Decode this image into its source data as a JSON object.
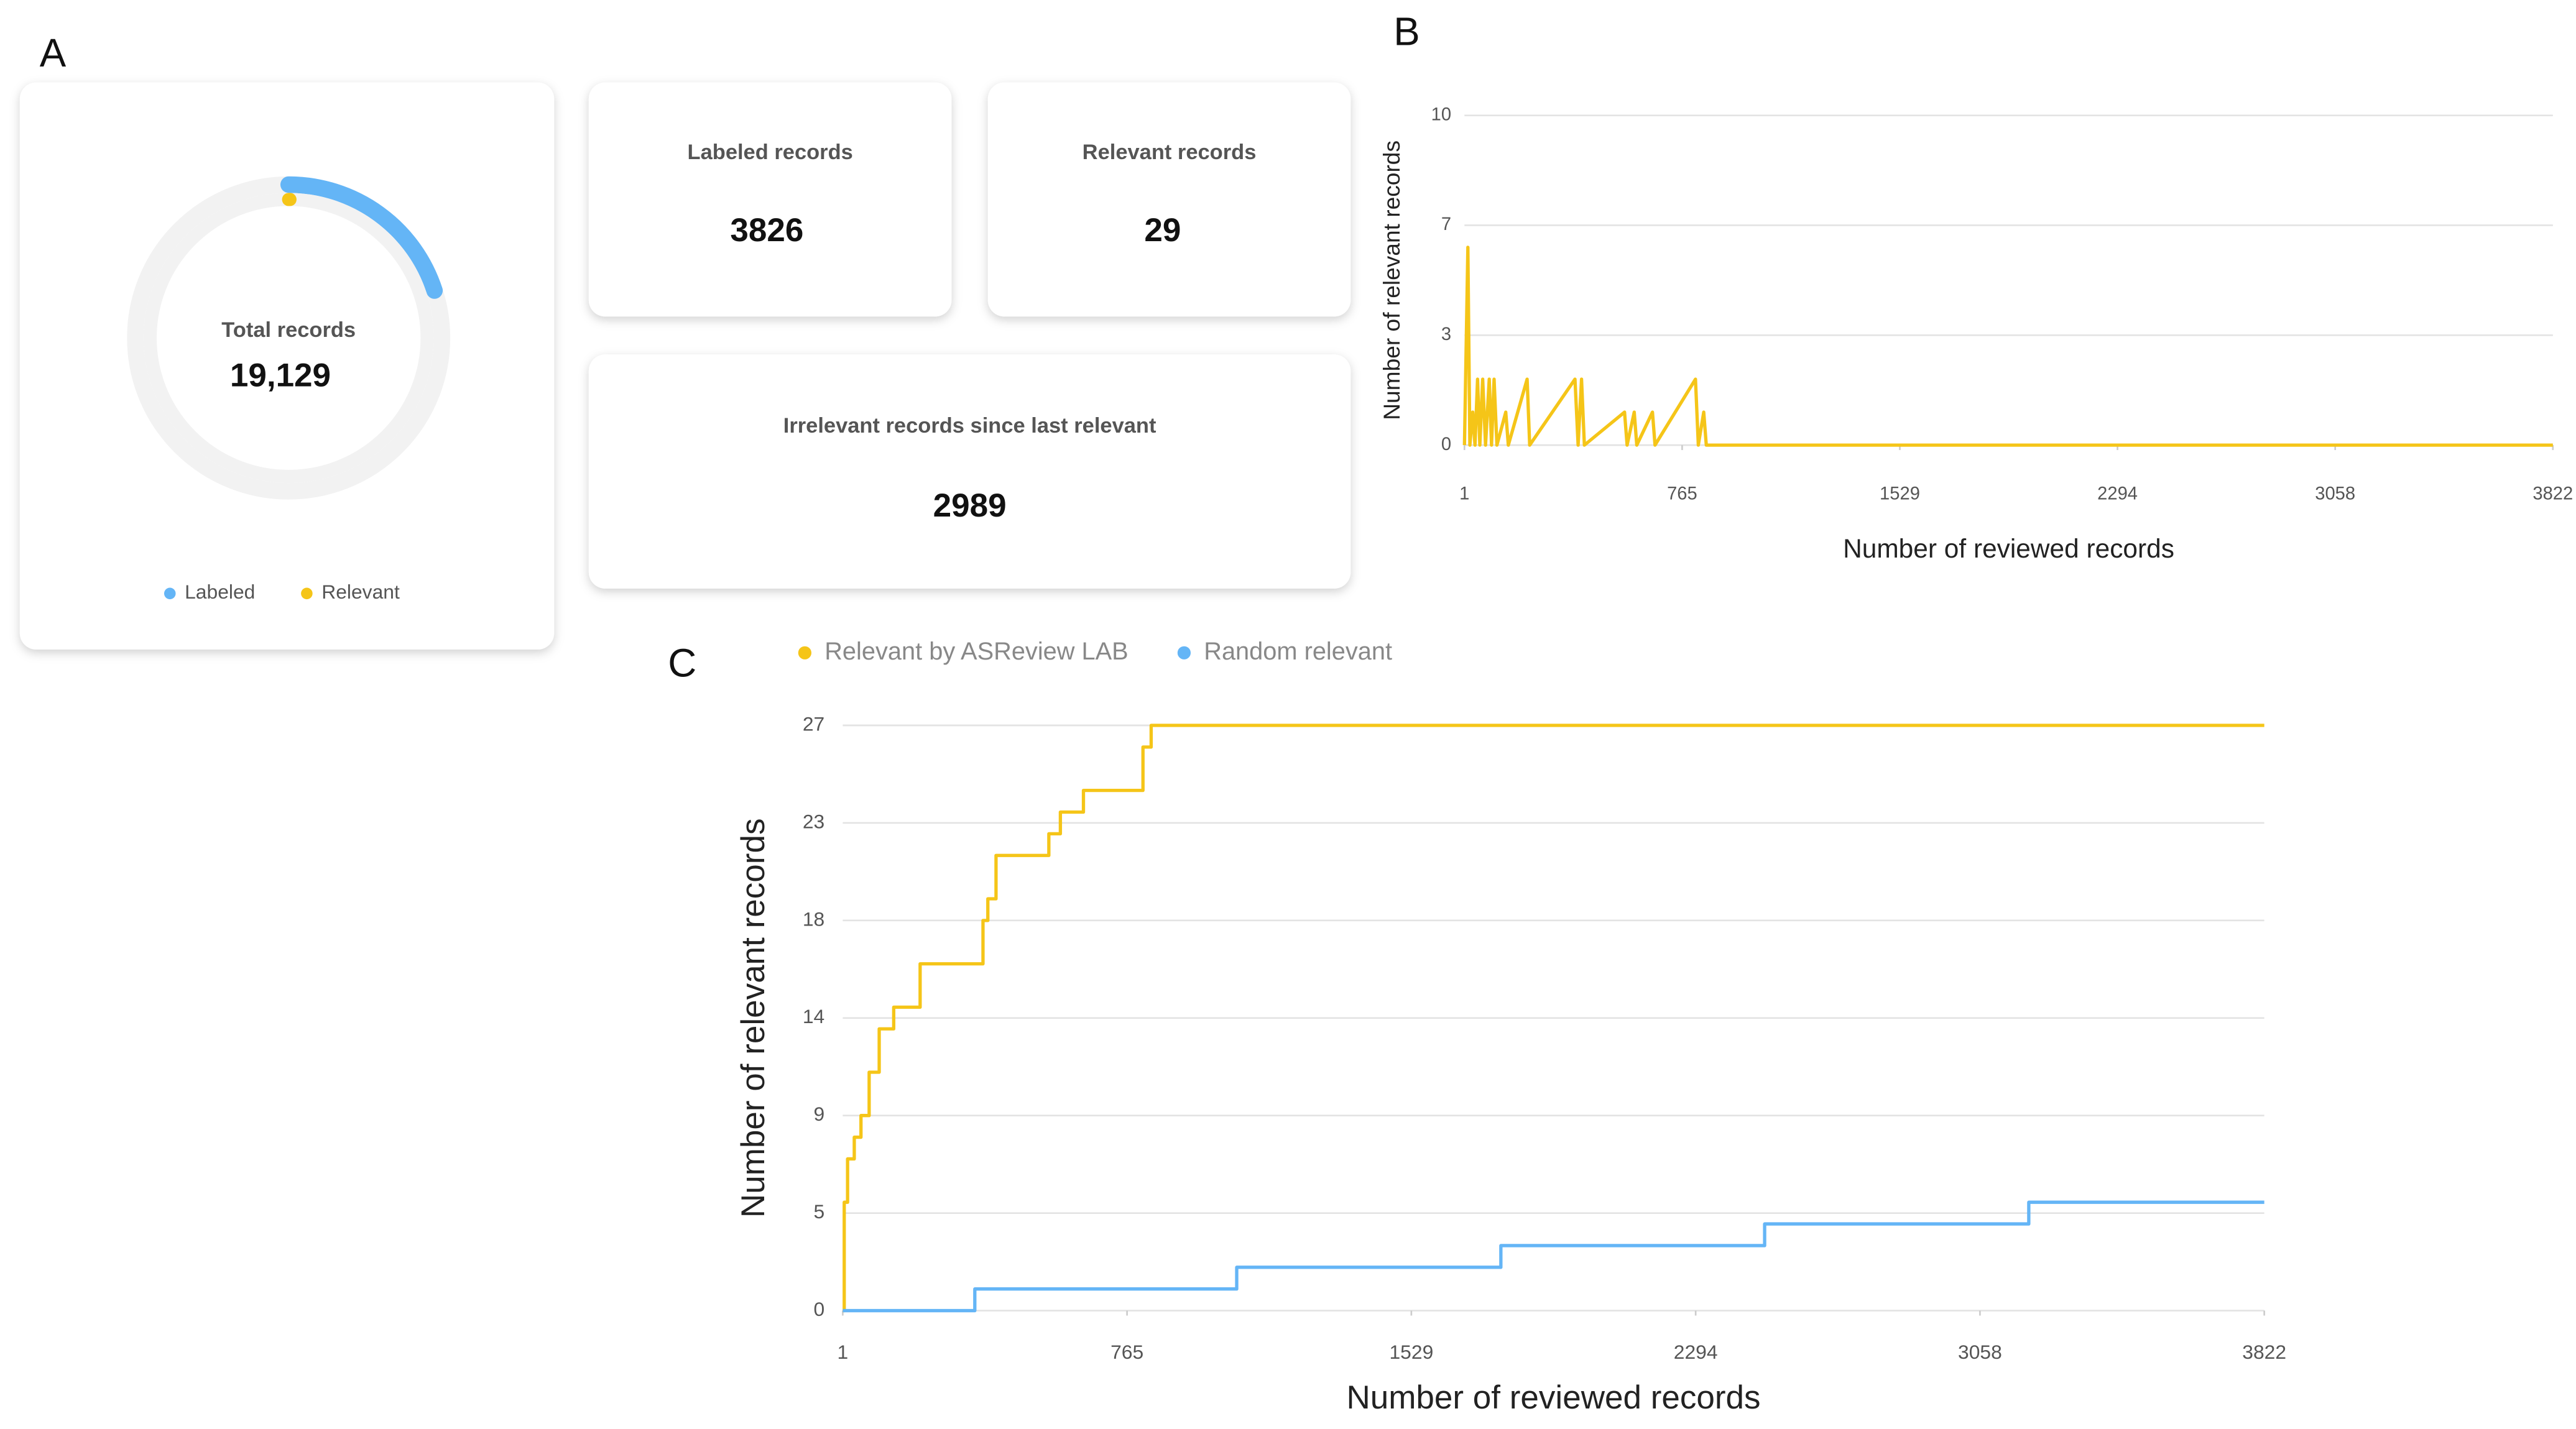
{
  "panel_labels": [
    "A",
    "B",
    "C"
  ],
  "stats": [
    {
      "label": "Labeled records",
      "value": 3826
    },
    {
      "label": "Relevant records",
      "value": 29
    },
    {
      "label": "Irrelevant records since last relevant",
      "value": 2989
    }
  ],
  "chart_data": [
    {
      "type": "donut",
      "title": "Total records",
      "total": {
        "value": 19129,
        "label": "19,129"
      },
      "series": [
        {
          "name": "Labeled",
          "color": "#64b5f6",
          "values": [
            3826
          ]
        },
        {
          "name": "Relevant",
          "color": "#f5c518",
          "values": [
            29
          ]
        }
      ]
    },
    {
      "type": "line",
      "y_label": "Number of relevant records",
      "x_label": "Number of reviewed records",
      "color": "#f5c518",
      "x": [
        1,
        13,
        20,
        30,
        38,
        47,
        55,
        65,
        75,
        88,
        96,
        105,
        115,
        146,
        155,
        221,
        230,
        389,
        400,
        412,
        422,
        563,
        572,
        597,
        606,
        661,
        670,
        812,
        822,
        841,
        850,
        3822
      ],
      "values": [
        0,
        6,
        0,
        1,
        0,
        2,
        0,
        2,
        0,
        2,
        0,
        2,
        0,
        1,
        0,
        2,
        0,
        2,
        0,
        2,
        0,
        1,
        0,
        1,
        0,
        1,
        0,
        2,
        0,
        1,
        0,
        0
      ],
      "xlim": [
        1,
        3822
      ],
      "xticks": [
        1,
        {
          "value": 765.2,
          "label": "765"
        },
        {
          "value": 1529.4,
          "label": "1529"
        },
        {
          "value": 2293.6,
          "label": "2294"
        },
        {
          "value": 3057.8,
          "label": "3058"
        },
        3822
      ],
      "ylim": [
        0,
        10
      ],
      "yticks": [
        0,
        {
          "value": 3.333,
          "label": "3"
        },
        {
          "value": 6.667,
          "label": "7"
        },
        10
      ],
      "grid": true
    },
    {
      "type": "line",
      "step": "after",
      "y_label": "Number of relevant records",
      "x_label": "Number of reviewed records",
      "series": [
        {
          "name": "Relevant by ASReview LAB",
          "color": "#f5c518",
          "x": [
            1,
            5,
            14,
            32,
            50,
            72,
            99,
            138,
            209,
            378,
            391,
            413,
            555,
            586,
            648,
            808,
            830,
            3822
          ],
          "values": [
            0,
            5,
            7,
            8,
            9,
            11,
            13,
            14,
            16,
            18,
            19,
            21,
            22,
            23,
            24,
            26,
            27,
            27
          ]
        },
        {
          "name": "Random relevant",
          "color": "#64b5f6",
          "x": [
            1,
            356,
            1060,
            1770,
            2479,
            3189,
            3822
          ],
          "values": [
            0,
            1,
            2,
            3,
            4,
            5,
            5
          ]
        }
      ],
      "xlim": [
        1,
        3822
      ],
      "xticks": [
        1,
        {
          "value": 765.2,
          "label": "765"
        },
        {
          "value": 1529.4,
          "label": "1529"
        },
        {
          "value": 2293.6,
          "label": "2294"
        },
        {
          "value": 3057.8,
          "label": "3058"
        },
        3822
      ],
      "ylim": [
        0,
        27
      ],
      "yticks": [
        0,
        {
          "value": 4.5,
          "label": "5"
        },
        9,
        {
          "value": 13.5,
          "label": "14"
        },
        18,
        {
          "value": 22.5,
          "label": "23"
        },
        27
      ],
      "grid": true
    }
  ]
}
